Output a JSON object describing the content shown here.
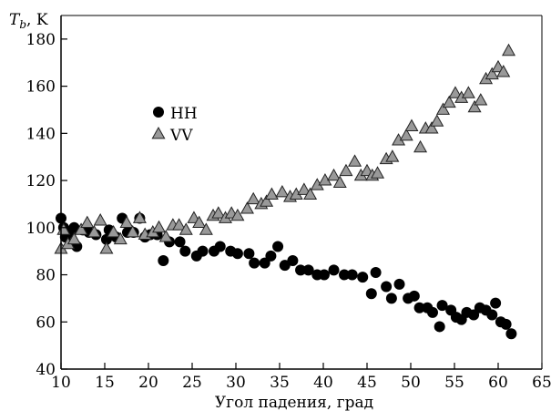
{
  "chart_data": {
    "type": "scatter",
    "title": "",
    "xlabel": "Угол падения, град",
    "ylabel": {
      "main": "T",
      "sub": "b",
      "unit": ", K"
    },
    "xlim": [
      10,
      65
    ],
    "ylim": [
      40,
      190
    ],
    "xticks": [
      10,
      15,
      20,
      25,
      30,
      35,
      40,
      45,
      50,
      55,
      60,
      65
    ],
    "yticks": [
      40,
      60,
      80,
      100,
      120,
      140,
      160,
      180
    ],
    "grid": false,
    "legend_position": "upper-left",
    "series": [
      {
        "name": "HH",
        "marker": "circle",
        "color": "#000000",
        "points": [
          [
            10,
            104
          ],
          [
            10.3,
            100
          ],
          [
            10.5,
            96
          ],
          [
            11,
            98
          ],
          [
            11.5,
            100
          ],
          [
            11.8,
            92
          ],
          [
            12.5,
            99
          ],
          [
            13.2,
            98
          ],
          [
            14,
            97
          ],
          [
            15.2,
            95
          ],
          [
            15.5,
            99
          ],
          [
            16.3,
            96
          ],
          [
            17,
            104
          ],
          [
            17.6,
            98
          ],
          [
            18.3,
            98
          ],
          [
            19,
            104
          ],
          [
            19.6,
            96
          ],
          [
            20.2,
            97
          ],
          [
            21,
            97
          ],
          [
            21.7,
            86
          ],
          [
            22.4,
            94
          ],
          [
            23.6,
            94
          ],
          [
            24.2,
            90
          ],
          [
            25.5,
            88
          ],
          [
            26.2,
            90
          ],
          [
            27.5,
            90
          ],
          [
            28.2,
            92
          ],
          [
            29.4,
            90
          ],
          [
            30.2,
            89
          ],
          [
            31.5,
            89
          ],
          [
            32.1,
            85
          ],
          [
            33.3,
            85
          ],
          [
            34,
            88
          ],
          [
            34.8,
            92
          ],
          [
            35.6,
            84
          ],
          [
            36.5,
            86
          ],
          [
            37.4,
            82
          ],
          [
            38.3,
            82
          ],
          [
            39.3,
            80
          ],
          [
            40.1,
            80
          ],
          [
            41.2,
            82
          ],
          [
            42.4,
            80
          ],
          [
            43.3,
            80
          ],
          [
            44.5,
            79
          ],
          [
            45.5,
            72
          ],
          [
            46,
            81
          ],
          [
            47.2,
            75
          ],
          [
            47.8,
            70
          ],
          [
            48.7,
            76
          ],
          [
            49.7,
            70
          ],
          [
            50.4,
            71
          ],
          [
            51,
            66
          ],
          [
            51.9,
            66
          ],
          [
            52.5,
            64
          ],
          [
            53.3,
            58
          ],
          [
            53.6,
            67
          ],
          [
            54.6,
            65
          ],
          [
            55.2,
            62
          ],
          [
            55.8,
            61
          ],
          [
            56.4,
            64
          ],
          [
            57.2,
            63
          ],
          [
            57.9,
            66
          ],
          [
            58.6,
            65
          ],
          [
            59.3,
            63
          ],
          [
            59.7,
            68
          ],
          [
            60.3,
            60
          ],
          [
            60.9,
            59
          ],
          [
            61.5,
            55
          ]
        ]
      },
      {
        "name": "VV",
        "marker": "triangle",
        "color": "#999999",
        "points": [
          [
            10,
            91
          ],
          [
            10.3,
            99
          ],
          [
            10.8,
            93
          ],
          [
            11.5,
            95
          ],
          [
            12.3,
            99
          ],
          [
            13,
            102
          ],
          [
            13.8,
            98
          ],
          [
            14.5,
            103
          ],
          [
            15.2,
            91
          ],
          [
            16,
            98
          ],
          [
            16.8,
            95
          ],
          [
            17.5,
            102
          ],
          [
            18.2,
            98
          ],
          [
            19,
            104
          ],
          [
            19.6,
            97
          ],
          [
            20.5,
            98
          ],
          [
            21.2,
            100
          ],
          [
            22,
            96
          ],
          [
            22.8,
            101
          ],
          [
            23.5,
            101
          ],
          [
            24.3,
            99
          ],
          [
            25.2,
            104
          ],
          [
            25.8,
            102
          ],
          [
            26.6,
            99
          ],
          [
            27.4,
            105
          ],
          [
            28,
            106
          ],
          [
            28.8,
            104
          ],
          [
            29.5,
            106
          ],
          [
            30.2,
            105
          ],
          [
            31.3,
            108
          ],
          [
            32,
            112
          ],
          [
            32.9,
            110
          ],
          [
            33.5,
            111
          ],
          [
            34.1,
            114
          ],
          [
            35.3,
            115
          ],
          [
            36.2,
            113
          ],
          [
            36.9,
            114
          ],
          [
            37.8,
            116
          ],
          [
            38.5,
            114
          ],
          [
            39.3,
            118
          ],
          [
            40.2,
            120
          ],
          [
            41.2,
            122
          ],
          [
            41.9,
            119
          ],
          [
            42.6,
            124
          ],
          [
            43.6,
            128
          ],
          [
            44.3,
            122
          ],
          [
            45,
            124
          ],
          [
            45.6,
            122
          ],
          [
            46.2,
            123
          ],
          [
            47.2,
            129
          ],
          [
            47.9,
            130
          ],
          [
            48.6,
            137
          ],
          [
            49.5,
            139
          ],
          [
            50.1,
            143
          ],
          [
            51.1,
            134
          ],
          [
            51.7,
            142
          ],
          [
            52.4,
            142
          ],
          [
            53,
            145
          ],
          [
            53.7,
            150
          ],
          [
            54.4,
            153
          ],
          [
            55.1,
            157
          ],
          [
            55.8,
            155
          ],
          [
            56.6,
            157
          ],
          [
            57.3,
            151
          ],
          [
            58,
            154
          ],
          [
            58.6,
            163
          ],
          [
            59.3,
            165
          ],
          [
            60,
            168
          ],
          [
            60.6,
            166
          ],
          [
            61.2,
            175
          ]
        ]
      }
    ]
  }
}
